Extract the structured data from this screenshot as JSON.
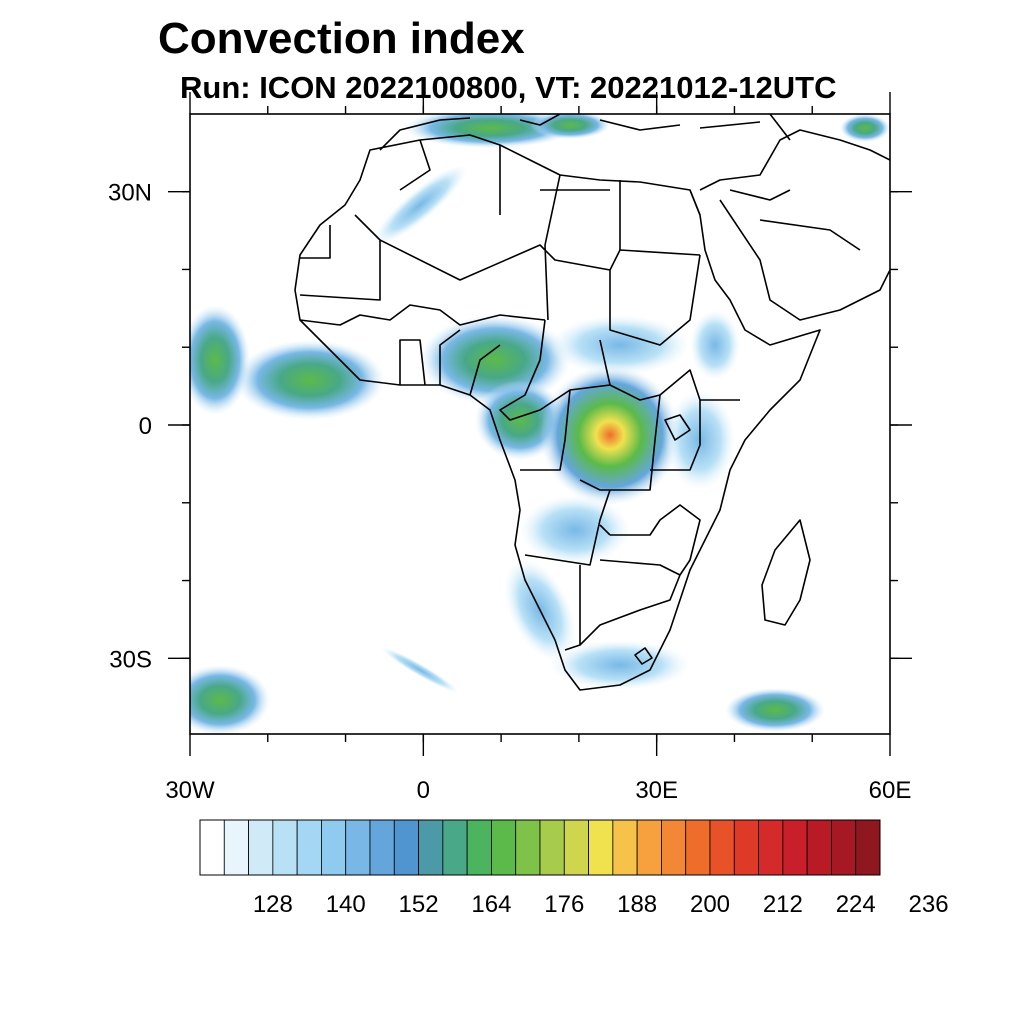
{
  "title": "Convection index",
  "subtitle": "Run: ICON 2022100800,  VT: 20221012-12UTC",
  "map": {
    "y_ticks": [
      {
        "label": "30N",
        "lat": 30
      },
      {
        "label": "0",
        "lat": 0
      },
      {
        "label": "30S",
        "lat": -30
      }
    ],
    "x_ticks": [
      {
        "label": "30W",
        "lon": -30
      },
      {
        "label": "0",
        "lon": 0
      },
      {
        "label": "30E",
        "lon": 30
      },
      {
        "label": "60E",
        "lon": 60
      }
    ]
  },
  "colorbar": {
    "colors": [
      "#ffffff",
      "#e8f5fc",
      "#d0eaf8",
      "#b9e1f6",
      "#a3d7f3",
      "#8ecbee",
      "#79b8e6",
      "#64a6dc",
      "#5195d0",
      "#4c9aa8",
      "#49a888",
      "#4cb35e",
      "#5cba4a",
      "#7fc24a",
      "#a7cb4a",
      "#cfd54c",
      "#f0e24f",
      "#f7c24a",
      "#f6a13e",
      "#f28835",
      "#ef6d2b",
      "#e85228",
      "#de3a27",
      "#d42a2a",
      "#c81f2a",
      "#b81a26",
      "#a51824",
      "#8f1820"
    ],
    "labels": [
      "128",
      "140",
      "152",
      "164",
      "176",
      "188",
      "200",
      "212",
      "224",
      "236"
    ]
  }
}
